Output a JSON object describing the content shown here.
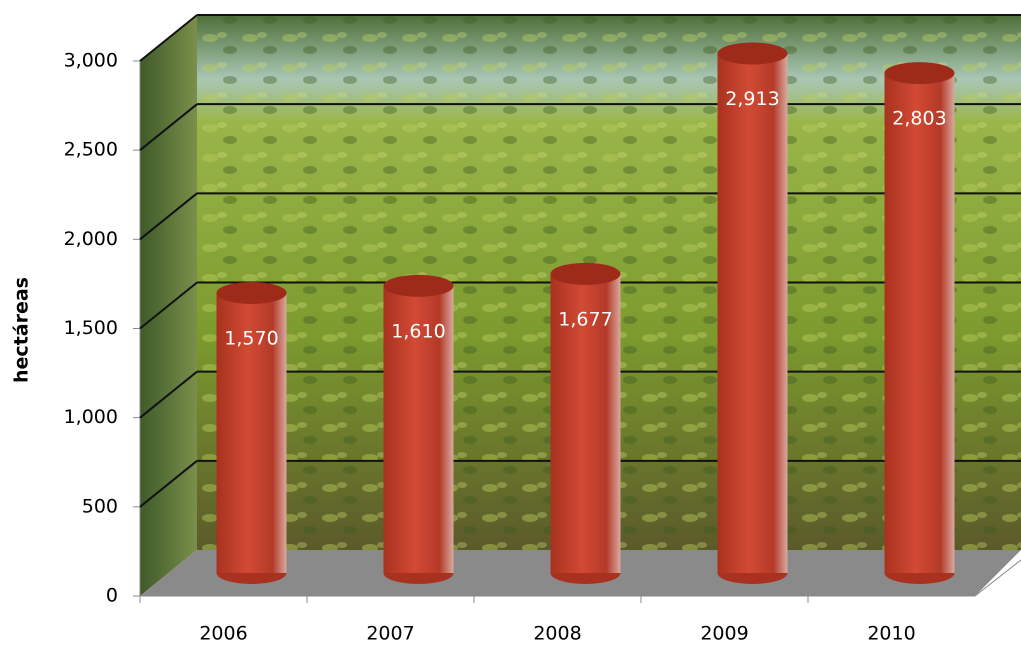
{
  "chart_data": {
    "type": "bar",
    "y_label": "hectáreas",
    "categories": [
      "2006",
      "2007",
      "2008",
      "2009",
      "2010"
    ],
    "values": [
      1570,
      1610,
      1677,
      2913,
      2803
    ],
    "value_labels": [
      "1,570",
      "1,610",
      "1,677",
      "2,913",
      "2,803"
    ],
    "color": "#c0392b",
    "ylim": [
      0,
      3000
    ],
    "yticks": [
      0,
      500,
      {
        "value": 1000,
        "label": "1,000"
      },
      {
        "value": 1500,
        "label": "1,500"
      },
      {
        "value": 2000,
        "label": "2,000"
      },
      {
        "value": 2500,
        "label": "2,500"
      },
      {
        "value": 3000,
        "label": "3,000"
      }
    ],
    "grid": true
  }
}
